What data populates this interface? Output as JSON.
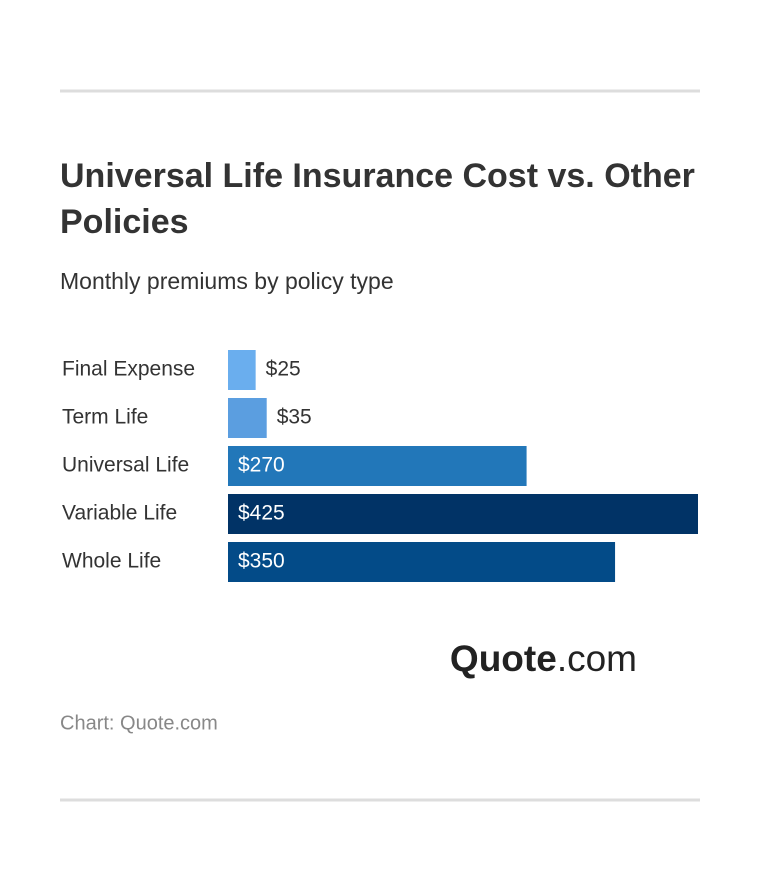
{
  "chart_data": {
    "type": "bar",
    "orientation": "horizontal",
    "title": "Universal Life Insurance Cost vs. Other Policies",
    "subtitle": "Monthly premiums by policy type",
    "categories": [
      "Final Expense",
      "Term Life",
      "Universal Life",
      "Variable Life",
      "Whole Life"
    ],
    "values": [
      25,
      35,
      270,
      425,
      350
    ],
    "value_labels": [
      "$25",
      "$35",
      "$270",
      "$425",
      "$350"
    ],
    "colors": [
      "#6aaeee",
      "#5b9ee0",
      "#2277b9",
      "#013366",
      "#034b88"
    ]
  },
  "logo": {
    "brand": "Quote",
    "suffix": ".com"
  },
  "source": "Chart: Quote.com"
}
